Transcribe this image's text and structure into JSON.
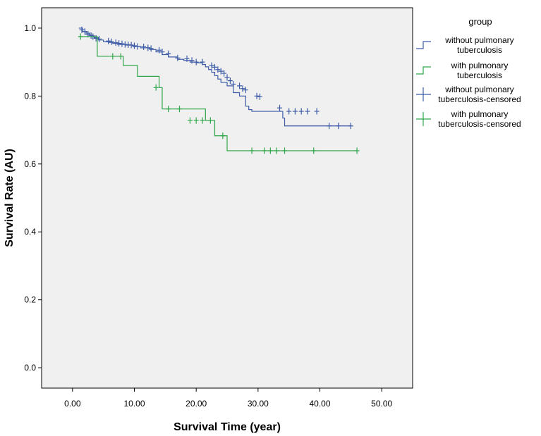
{
  "chart_data": {
    "type": "line",
    "subtype": "kaplan-meier",
    "xlabel": "Survival Time (year)",
    "ylabel": "Survival Rate (AU)",
    "xlim": [
      -5,
      55
    ],
    "ylim": [
      -0.06,
      1.06
    ],
    "xticks": [
      0,
      10,
      20,
      30,
      40,
      50
    ],
    "xtick_labels": [
      "0.00",
      "10.00",
      "20.00",
      "30.00",
      "40.00",
      "50.00"
    ],
    "yticks": [
      0,
      0.2,
      0.4,
      0.6,
      0.8,
      1.0
    ],
    "ytick_labels": [
      "0.0",
      "0.2",
      "0.4",
      "0.6",
      "0.8",
      "1.0"
    ],
    "grid": false,
    "background": "#f0f0f0",
    "legend": {
      "title": "group",
      "placement": "right",
      "entries": [
        {
          "lines": [
            "without pulmonary",
            "tuberculosis"
          ],
          "kind": "step",
          "series": 0
        },
        {
          "lines": [
            "with pulmonary",
            "tuberculosis"
          ],
          "kind": "step",
          "series": 1
        },
        {
          "lines": [
            "without pulmonary",
            "tuberculosis-censored"
          ],
          "kind": "censor",
          "series": 0
        },
        {
          "lines": [
            "with pulmonary",
            "tuberculosis-censored"
          ],
          "kind": "censor",
          "series": 1
        }
      ]
    },
    "series": [
      {
        "color": "#3e5ca8",
        "steps": [
          [
            1,
            1.0
          ],
          [
            1.6,
            0.99
          ],
          [
            2.2,
            0.985
          ],
          [
            2.8,
            0.978
          ],
          [
            3.5,
            0.972
          ],
          [
            4.2,
            0.965
          ],
          [
            5,
            0.96
          ],
          [
            5.8,
            0.958
          ],
          [
            6.5,
            0.955
          ],
          [
            7.3,
            0.952
          ],
          [
            8.5,
            0.95
          ],
          [
            9.8,
            0.946
          ],
          [
            11,
            0.942
          ],
          [
            12.5,
            0.937
          ],
          [
            13.5,
            0.93
          ],
          [
            14.5,
            0.922
          ],
          [
            15.5,
            0.915
          ],
          [
            17,
            0.908
          ],
          [
            18,
            0.905
          ],
          [
            19,
            0.9
          ],
          [
            20,
            0.898
          ],
          [
            21,
            0.893
          ],
          [
            21.5,
            0.886
          ],
          [
            22,
            0.878
          ],
          [
            22.5,
            0.87
          ],
          [
            23,
            0.86
          ],
          [
            23.5,
            0.85
          ],
          [
            24,
            0.84
          ],
          [
            25,
            0.83
          ],
          [
            26,
            0.81
          ],
          [
            27,
            0.8
          ],
          [
            28,
            0.77
          ],
          [
            28.5,
            0.76
          ],
          [
            29,
            0.755
          ],
          [
            34,
            0.735
          ],
          [
            34.3,
            0.712
          ],
          [
            45,
            0.712
          ]
        ],
        "censored": [
          [
            1.5,
            0.995
          ],
          [
            2,
            0.99
          ],
          [
            2.5,
            0.982
          ],
          [
            3,
            0.978
          ],
          [
            3.3,
            0.975
          ],
          [
            3.8,
            0.97
          ],
          [
            4.3,
            0.968
          ],
          [
            5.8,
            0.962
          ],
          [
            6.3,
            0.96
          ],
          [
            7,
            0.957
          ],
          [
            7.5,
            0.955
          ],
          [
            8,
            0.954
          ],
          [
            8.5,
            0.952
          ],
          [
            9,
            0.951
          ],
          [
            9.5,
            0.95
          ],
          [
            10,
            0.948
          ],
          [
            10.5,
            0.946
          ],
          [
            11.5,
            0.945
          ],
          [
            12.2,
            0.942
          ],
          [
            12.7,
            0.94
          ],
          [
            14,
            0.935
          ],
          [
            14.5,
            0.93
          ],
          [
            15.5,
            0.925
          ],
          [
            17,
            0.912
          ],
          [
            18.5,
            0.91
          ],
          [
            19.3,
            0.905
          ],
          [
            20,
            0.9
          ],
          [
            21,
            0.9
          ],
          [
            22.5,
            0.89
          ],
          [
            23,
            0.885
          ],
          [
            23.5,
            0.878
          ],
          [
            24,
            0.873
          ],
          [
            24.5,
            0.867
          ],
          [
            25,
            0.855
          ],
          [
            25.5,
            0.845
          ],
          [
            26,
            0.835
          ],
          [
            27,
            0.83
          ],
          [
            27.5,
            0.822
          ],
          [
            28,
            0.818
          ],
          [
            29.8,
            0.8
          ],
          [
            30.3,
            0.798
          ],
          [
            33.5,
            0.765
          ],
          [
            35,
            0.755
          ],
          [
            36,
            0.755
          ],
          [
            37,
            0.755
          ],
          [
            38,
            0.755
          ],
          [
            39.5,
            0.755
          ],
          [
            41.5,
            0.712
          ],
          [
            43,
            0.712
          ],
          [
            45,
            0.712
          ]
        ]
      },
      {
        "color": "#2fa64a",
        "steps": [
          [
            1,
            0.975
          ],
          [
            4,
            0.917
          ],
          [
            8.2,
            0.89
          ],
          [
            10.5,
            0.858
          ],
          [
            14,
            0.825
          ],
          [
            14.5,
            0.762
          ],
          [
            21.5,
            0.728
          ],
          [
            23,
            0.683
          ],
          [
            25,
            0.639
          ],
          [
            46,
            0.639
          ]
        ],
        "censored": [
          [
            1.3,
            0.975
          ],
          [
            6.5,
            0.917
          ],
          [
            7.8,
            0.917
          ],
          [
            13.5,
            0.825
          ],
          [
            15.5,
            0.762
          ],
          [
            17.3,
            0.762
          ],
          [
            19,
            0.728
          ],
          [
            20,
            0.728
          ],
          [
            21,
            0.728
          ],
          [
            22.3,
            0.728
          ],
          [
            24.3,
            0.683
          ],
          [
            29,
            0.639
          ],
          [
            31,
            0.639
          ],
          [
            32,
            0.639
          ],
          [
            33,
            0.639
          ],
          [
            34.3,
            0.639
          ],
          [
            39,
            0.639
          ],
          [
            46,
            0.639
          ]
        ]
      }
    ]
  }
}
